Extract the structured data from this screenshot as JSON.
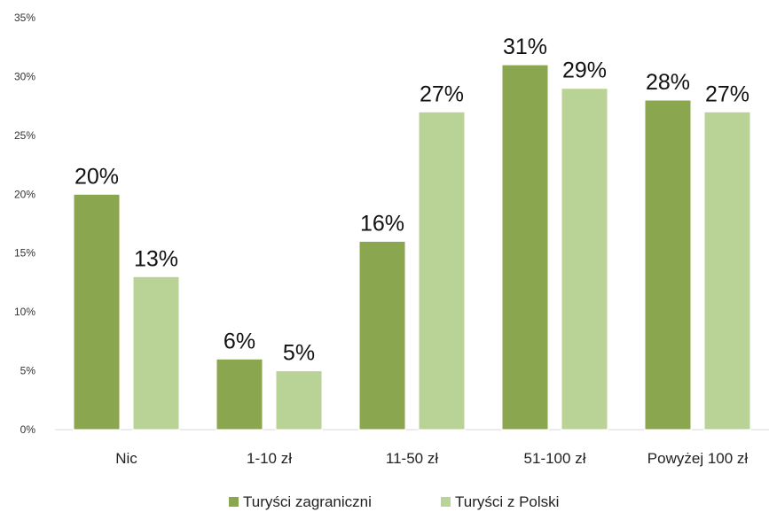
{
  "chart_data": {
    "type": "bar",
    "title": "",
    "xlabel": "",
    "ylabel": "",
    "categories": [
      "Nic",
      "1-10 zł",
      "11-50 zł",
      "51-100 zł",
      "Powyżej 100 zł"
    ],
    "ylim": [
      0,
      35
    ],
    "yticks": [
      "0%",
      "5%",
      "10%",
      "15%",
      "20%",
      "25%",
      "30%",
      "35%"
    ],
    "grid": false,
    "legend_position": "bottom",
    "series": [
      {
        "name": "Turyści zagraniczni",
        "color": "#8aa64e",
        "values": [
          20,
          6,
          16,
          31,
          28
        ],
        "labels": [
          "20%",
          "6%",
          "16%",
          "31%",
          "28%"
        ]
      },
      {
        "name": "Turyści z Polski",
        "color": "#b9d295",
        "values": [
          13,
          5,
          27,
          29,
          27
        ],
        "labels": [
          "13%",
          "5%",
          "27%",
          "29%",
          "27%"
        ]
      }
    ]
  }
}
